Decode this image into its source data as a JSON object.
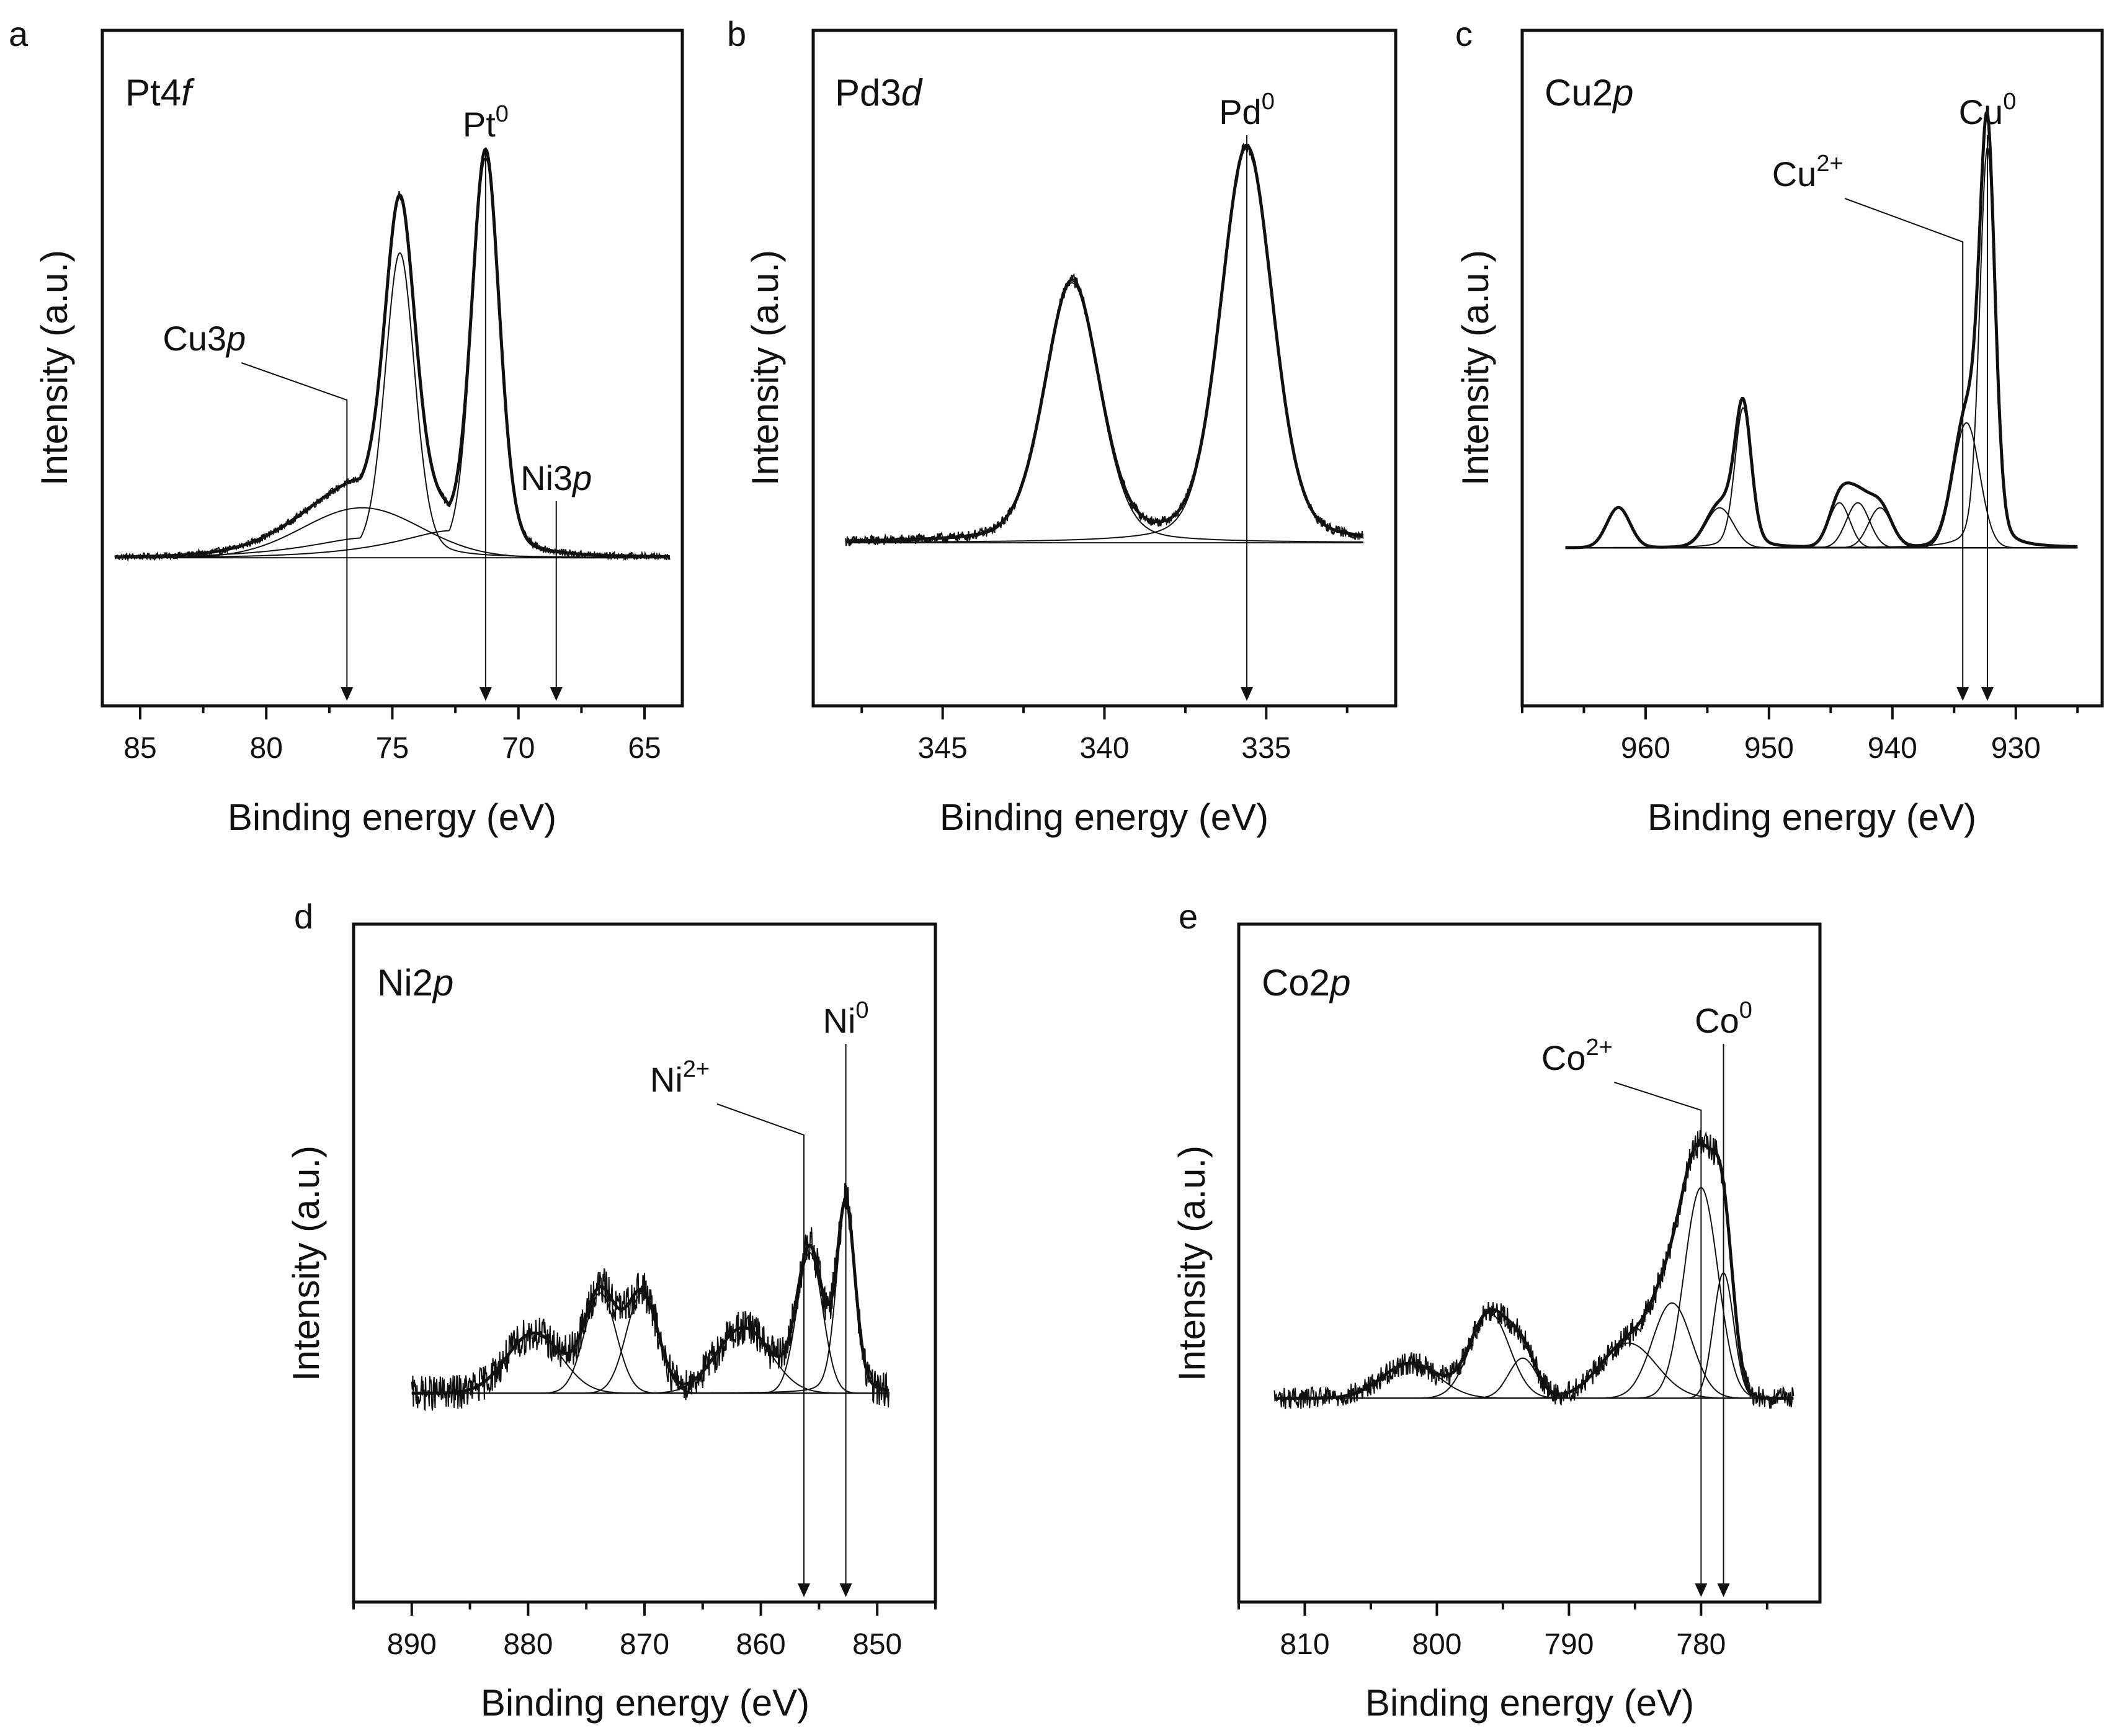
{
  "chart_data": [
    {
      "type": "line",
      "panel": "a",
      "title_main": "Pt4",
      "title_em": "f",
      "xlabel": "Binding energy (eV)",
      "ylabel": "Intensity (a.u.)",
      "xlim": [
        86.5,
        63.5
      ],
      "xticks": [
        85,
        80,
        75,
        70,
        65
      ],
      "ylim": [
        0,
        1
      ],
      "baseline": 0.08,
      "noise": 0.007,
      "data_range": [
        86,
        64
      ],
      "series": [
        {
          "name": "Pt4f7/2",
          "kind": "peak",
          "shape": "pv",
          "center": 71.3,
          "fwhm": 1.3,
          "amp": 0.8,
          "left_tail": 2.5
        },
        {
          "name": "Pt4f5/2",
          "kind": "peak",
          "shape": "pv",
          "center": 74.7,
          "fwhm": 1.4,
          "amp": 0.61,
          "left_tail": 2.5
        },
        {
          "name": "Cu3p",
          "kind": "peak",
          "shape": "gauss",
          "center": 76.2,
          "fwhm": 5.5,
          "amp": 0.1
        }
      ],
      "annotations": [
        {
          "kind": "arrow",
          "x": 71.3,
          "main": "Pt",
          "sup": "0"
        },
        {
          "kind": "elbow",
          "x": 76.8,
          "main": "Cu3",
          "em": "p",
          "sup": ""
        },
        {
          "kind": "arrow",
          "x": 68.5,
          "main": "Ni3",
          "em": "p",
          "sup": ""
        }
      ]
    },
    {
      "type": "line",
      "panel": "b",
      "title_main": "Pd3",
      "title_em": "d",
      "xlabel": "Binding energy (eV)",
      "ylabel": "Intensity (a.u.)",
      "xlim": [
        349,
        331
      ],
      "xticks": [
        345,
        340,
        335
      ],
      "ylim": [
        0,
        1
      ],
      "baseline": 0.11,
      "noise": 0.01,
      "data_range": [
        348,
        332
      ],
      "series": [
        {
          "name": "Pd3d5/2",
          "kind": "peak",
          "shape": "pv",
          "center": 335.6,
          "fwhm": 1.9,
          "amp": 0.79
        },
        {
          "name": "Pd3d3/2",
          "kind": "peak",
          "shape": "pv",
          "center": 341.0,
          "fwhm": 2.0,
          "amp": 0.52
        }
      ],
      "annotations": [
        {
          "kind": "arrow",
          "x": 335.6,
          "main": "Pd",
          "sup": "0"
        }
      ]
    },
    {
      "type": "line",
      "panel": "c",
      "title_main": "Cu2",
      "title_em": "p",
      "xlabel": "Binding energy (eV)",
      "ylabel": "Intensity (a.u.)",
      "xlim": [
        970,
        923
      ],
      "xticks": [
        960,
        950,
        940,
        930
      ],
      "ylim": [
        0,
        1
      ],
      "baseline": 0.1,
      "noise": 0.0,
      "data_range": [
        966.5,
        925
      ],
      "series": [
        {
          "name": "Cu0 2p3/2",
          "kind": "peak",
          "shape": "pv",
          "center": 932.3,
          "fwhm": 1.5,
          "amp": 0.8
        },
        {
          "name": "Cu2+ 2p3/2",
          "kind": "peak",
          "shape": "gauss",
          "center": 934.0,
          "fwhm": 2.5,
          "amp": 0.25
        },
        {
          "name": "satellite 1",
          "kind": "peak",
          "shape": "gauss",
          "center": 941.0,
          "fwhm": 2.2,
          "amp": 0.08
        },
        {
          "name": "satellite 2",
          "kind": "peak",
          "shape": "gauss",
          "center": 942.8,
          "fwhm": 2.2,
          "amp": 0.09
        },
        {
          "name": "satellite 3",
          "kind": "peak",
          "shape": "gauss",
          "center": 944.3,
          "fwhm": 2.0,
          "amp": 0.09
        },
        {
          "name": "Cu0 2p1/2",
          "kind": "peak",
          "shape": "pv",
          "center": 952.1,
          "fwhm": 1.6,
          "amp": 0.28
        },
        {
          "name": "Cu2+ 2p1/2",
          "kind": "peak",
          "shape": "gauss",
          "center": 954.0,
          "fwhm": 2.6,
          "amp": 0.08
        },
        {
          "name": "satellite 4",
          "kind": "peak",
          "shape": "gauss",
          "center": 962.2,
          "fwhm": 2.2,
          "amp": 0.08
        }
      ],
      "annotations": [
        {
          "kind": "arrow",
          "x": 932.3,
          "main": "Cu",
          "sup": "0"
        },
        {
          "kind": "elbow",
          "x": 934.3,
          "main": "Cu",
          "sup": "2+"
        }
      ]
    },
    {
      "type": "line",
      "panel": "d",
      "title_main": "Ni2",
      "title_em": "p",
      "xlabel": "Binding energy (eV)",
      "ylabel": "Intensity (a.u.)",
      "xlim": [
        895,
        845
      ],
      "xticks": [
        890,
        880,
        870,
        860,
        850
      ],
      "ylim": [
        0,
        1
      ],
      "baseline": 0.2,
      "noise": 0.035,
      "data_range": [
        890,
        849
      ],
      "series": [
        {
          "name": "Ni0 2p3/2",
          "kind": "peak",
          "shape": "pv",
          "center": 852.7,
          "fwhm": 1.9,
          "amp": 0.38
        },
        {
          "name": "Ni2+ 2p3/2",
          "kind": "peak",
          "shape": "gauss",
          "center": 855.8,
          "fwhm": 2.6,
          "amp": 0.28
        },
        {
          "name": "satellite 1",
          "kind": "peak",
          "shape": "gauss",
          "center": 861.5,
          "fwhm": 5.5,
          "amp": 0.13
        },
        {
          "name": "Ni0 2p1/2",
          "kind": "peak",
          "shape": "gauss",
          "center": 870.2,
          "fwhm": 3.2,
          "amp": 0.2
        },
        {
          "name": "Ni2+ 2p1/2",
          "kind": "peak",
          "shape": "gauss",
          "center": 873.8,
          "fwhm": 3.2,
          "amp": 0.2
        },
        {
          "name": "satellite 2",
          "kind": "peak",
          "shape": "gauss",
          "center": 879.5,
          "fwhm": 5.5,
          "amp": 0.12
        }
      ],
      "annotations": [
        {
          "kind": "arrow",
          "x": 852.7,
          "main": "Ni",
          "sup": "0"
        },
        {
          "kind": "elbow",
          "x": 856.3,
          "main": "Ni",
          "sup": "2+"
        }
      ]
    },
    {
      "type": "line",
      "panel": "e",
      "title_main": "Co2",
      "title_em": "p",
      "xlabel": "Binding energy (eV)",
      "ylabel": "Intensity (a.u.)",
      "xlim": [
        815,
        771
      ],
      "xticks": [
        810,
        800,
        790,
        780
      ],
      "ylim": [
        0,
        1
      ],
      "baseline": 0.19,
      "noise": 0.022,
      "data_range": [
        812.3,
        773
      ],
      "series": [
        {
          "name": "Co0 2p3/2",
          "kind": "peak",
          "shape": "gauss",
          "center": 778.3,
          "fwhm": 1.8,
          "amp": 0.25
        },
        {
          "name": "Co2+ 2p3/2",
          "kind": "peak",
          "shape": "gauss",
          "center": 780.0,
          "fwhm": 3.0,
          "amp": 0.42
        },
        {
          "name": "satellite 1",
          "kind": "peak",
          "shape": "gauss",
          "center": 782.2,
          "fwhm": 3.5,
          "amp": 0.19
        },
        {
          "name": "satellite 2",
          "kind": "peak",
          "shape": "gauss",
          "center": 785.5,
          "fwhm": 5.0,
          "amp": 0.11
        },
        {
          "name": "Co2+ 2p1/2",
          "kind": "peak",
          "shape": "gauss",
          "center": 793.5,
          "fwhm": 2.5,
          "amp": 0.08
        },
        {
          "name": "Co0 2p1/2",
          "kind": "peak",
          "shape": "gauss",
          "center": 796.0,
          "fwhm": 3.5,
          "amp": 0.17
        },
        {
          "name": "satellite 3",
          "kind": "peak",
          "shape": "gauss",
          "center": 802.0,
          "fwhm": 5.0,
          "amp": 0.07
        }
      ],
      "annotations": [
        {
          "kind": "arrow",
          "x": 778.3,
          "main": "Co",
          "sup": "0"
        },
        {
          "kind": "elbow",
          "x": 780.0,
          "main": "Co",
          "sup": "2+"
        }
      ]
    }
  ]
}
